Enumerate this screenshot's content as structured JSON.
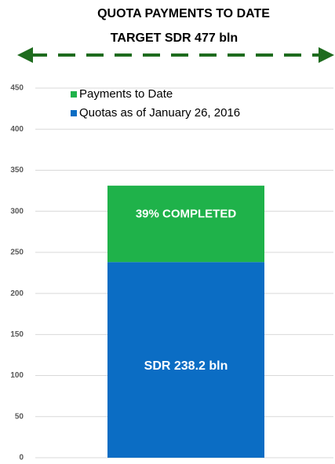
{
  "chart_data": {
    "type": "stacked_bar",
    "title": "QUOTA PAYMENTS TO DATE",
    "subtitle": "TARGET SDR 477 bln",
    "categories": [
      null
    ],
    "series": [
      {
        "name": "Quotas as of January 26, 2016",
        "color": "#0b6dc4",
        "values": [
          238.2
        ],
        "value_labels": [
          "SDR 238.2 bln"
        ]
      },
      {
        "name": "Payments to Date",
        "color": "#1fb24a",
        "values": [
          93
        ]
      }
    ],
    "annotations": [
      "39% COMPLETED"
    ],
    "ylim": [
      0,
      450
    ],
    "yticks": [
      0,
      50,
      100,
      150,
      200,
      250,
      300,
      350,
      400,
      450
    ],
    "grid": true,
    "legend": "top"
  }
}
